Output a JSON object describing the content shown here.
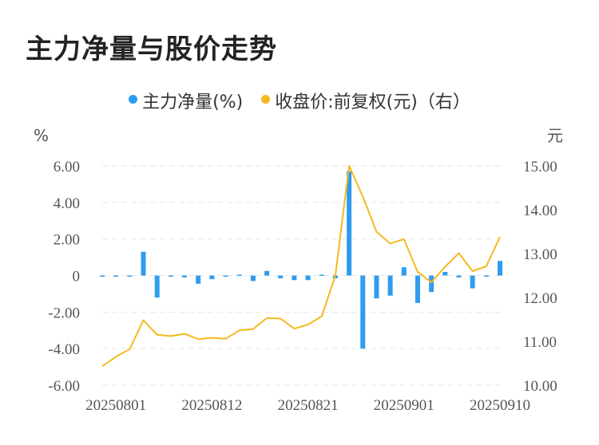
{
  "title": "主力净量与股价走势",
  "legend": {
    "net": "主力净量(%)",
    "price": "收盘价:前复权(元)（右）"
  },
  "colors": {
    "net": "#2e9cf0",
    "price": "#f5b920",
    "grid": "#e6e6e6"
  },
  "chart_data": {
    "type": "bar+line",
    "left_unit": "%",
    "right_unit": "元",
    "y_left": {
      "min": -6,
      "max": 6,
      "ticks": [
        "6.00",
        "4.00",
        "2.00",
        "0",
        "-2.00",
        "-4.00",
        "-6.00"
      ],
      "tick_values": [
        6,
        4,
        2,
        0,
        -2,
        -4,
        -6
      ]
    },
    "y_right": {
      "min": 10,
      "max": 15,
      "ticks": [
        "15.00",
        "14.00",
        "13.00",
        "12.00",
        "11.00",
        "10.00"
      ],
      "tick_values": [
        15,
        14,
        13,
        12,
        11,
        10
      ]
    },
    "x_tick_labels": [
      "20250801",
      "20250812",
      "20250821",
      "20250901",
      "20250910"
    ],
    "x_tick_index": [
      1,
      8,
      15,
      22,
      29
    ],
    "dates": [
      "20250731",
      "20250801",
      "20250804",
      "20250805",
      "20250806",
      "20250807",
      "20250808",
      "20250811",
      "20250812",
      "20250813",
      "20250814",
      "20250815",
      "20250818",
      "20250819",
      "20250820",
      "20250821",
      "20250822",
      "20250825",
      "20250826",
      "20250827",
      "20250828",
      "20250829",
      "20250901",
      "20250902",
      "20250903",
      "20250904",
      "20250905",
      "20250908",
      "20250909",
      "20250910"
    ],
    "series": [
      {
        "name": "主力净量(%)",
        "kind": "bar",
        "values": [
          -0.05,
          -0.02,
          -0.05,
          1.3,
          -1.2,
          -0.05,
          -0.1,
          -0.45,
          -0.2,
          -0.02,
          0.05,
          -0.3,
          0.25,
          -0.15,
          -0.25,
          -0.25,
          0.05,
          -0.15,
          5.7,
          -4.0,
          -1.25,
          -1.1,
          0.45,
          -1.5,
          -0.9,
          0.2,
          -0.1,
          -0.7,
          -0.05,
          0.8
        ]
      },
      {
        "name": "收盘价:前复权(元)（右）",
        "kind": "line",
        "values": [
          10.43,
          10.65,
          10.82,
          11.48,
          11.15,
          11.12,
          11.17,
          11.05,
          11.08,
          11.06,
          11.25,
          11.28,
          11.53,
          11.52,
          11.29,
          11.38,
          11.57,
          12.5,
          15.0,
          14.3,
          13.5,
          13.23,
          13.33,
          12.58,
          12.35,
          12.7,
          13.01,
          12.6,
          12.71,
          13.38
        ]
      }
    ]
  }
}
